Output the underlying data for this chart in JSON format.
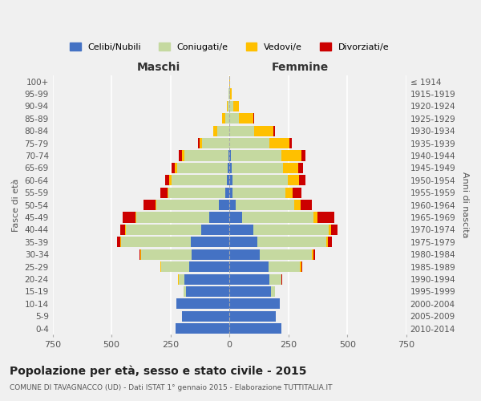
{
  "age_groups": [
    "100+",
    "95-99",
    "90-94",
    "85-89",
    "80-84",
    "75-79",
    "70-74",
    "65-69",
    "60-64",
    "55-59",
    "50-54",
    "45-49",
    "40-44",
    "35-39",
    "30-34",
    "25-29",
    "20-24",
    "15-19",
    "10-14",
    "5-9",
    "0-4"
  ],
  "birth_years": [
    "≤ 1914",
    "1915-1919",
    "1920-1924",
    "1925-1929",
    "1930-1934",
    "1935-1939",
    "1940-1944",
    "1945-1949",
    "1950-1954",
    "1955-1959",
    "1960-1964",
    "1965-1969",
    "1970-1974",
    "1975-1979",
    "1980-1984",
    "1985-1989",
    "1990-1994",
    "1995-1999",
    "2000-2004",
    "2005-2009",
    "2010-2014"
  ],
  "males": {
    "celibe": [
      0,
      0,
      0,
      0,
      0,
      0,
      5,
      8,
      12,
      18,
      45,
      85,
      120,
      165,
      160,
      170,
      190,
      185,
      225,
      200,
      230
    ],
    "coniugato": [
      1,
      3,
      8,
      18,
      50,
      115,
      185,
      215,
      235,
      240,
      265,
      310,
      320,
      295,
      215,
      120,
      25,
      8,
      0,
      0,
      0
    ],
    "vedovo": [
      1,
      2,
      4,
      12,
      18,
      12,
      12,
      10,
      8,
      6,
      4,
      4,
      4,
      4,
      4,
      2,
      2,
      0,
      0,
      0,
      0
    ],
    "divorziato": [
      0,
      0,
      0,
      0,
      0,
      7,
      13,
      13,
      18,
      30,
      50,
      55,
      18,
      12,
      4,
      2,
      0,
      0,
      0,
      0,
      0
    ]
  },
  "females": {
    "nubile": [
      0,
      0,
      0,
      0,
      0,
      0,
      5,
      8,
      12,
      12,
      25,
      55,
      100,
      120,
      130,
      165,
      170,
      175,
      215,
      195,
      220
    ],
    "coniugata": [
      1,
      4,
      15,
      40,
      105,
      170,
      215,
      220,
      235,
      225,
      250,
      300,
      320,
      290,
      220,
      135,
      50,
      18,
      0,
      0,
      0
    ],
    "vedova": [
      2,
      7,
      25,
      60,
      80,
      85,
      85,
      65,
      48,
      30,
      26,
      18,
      12,
      8,
      6,
      4,
      2,
      0,
      0,
      0,
      0
    ],
    "divorziata": [
      0,
      0,
      0,
      4,
      7,
      9,
      18,
      18,
      26,
      40,
      50,
      72,
      26,
      18,
      6,
      4,
      2,
      0,
      0,
      0,
      0
    ]
  },
  "colors": {
    "celibe": "#4472c4",
    "coniugato": "#c5d9a0",
    "vedovo": "#ffc000",
    "divorziato": "#cc0000"
  },
  "xlim": 750,
  "title": "Popolazione per età, sesso e stato civile - 2015",
  "subtitle": "COMUNE DI TAVAGNACCO (UD) - Dati ISTAT 1° gennaio 2015 - Elaborazione TUTTITALIA.IT",
  "ylabel_left": "Fasce di età",
  "ylabel_right": "Anni di nascita",
  "xlabel_left": "Maschi",
  "xlabel_right": "Femmine",
  "legend_labels": [
    "Celibi/Nubili",
    "Coniugati/e",
    "Vedovi/e",
    "Divorziati/e"
  ],
  "background_color": "#f0f0f0",
  "grid_color": "#ffffff"
}
